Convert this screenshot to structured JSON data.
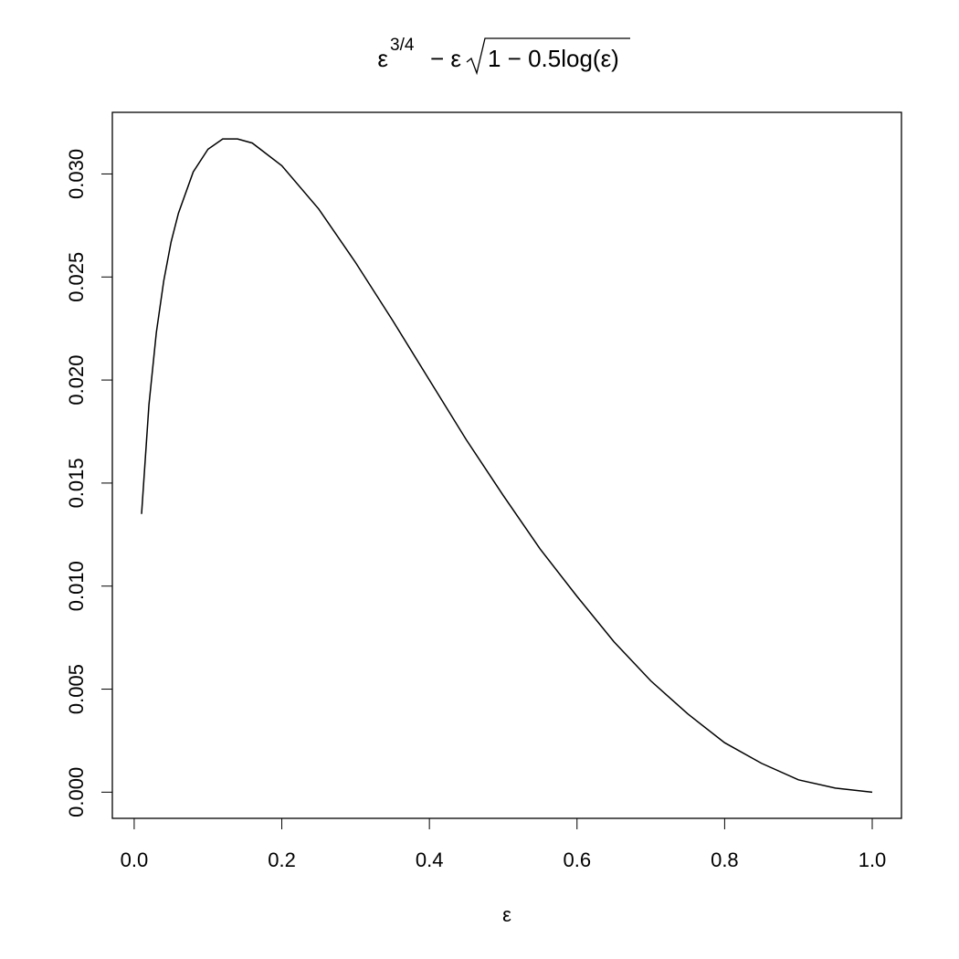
{
  "chart_data": {
    "type": "line",
    "title": {
      "base": "ε",
      "exponent": "3/4",
      "middle": "− ε",
      "radicand": "1 − 0.5log(ε)"
    },
    "x_label": "ε",
    "x": [
      0.01,
      0.02,
      0.03,
      0.04,
      0.05,
      0.06,
      0.08,
      0.1,
      0.12,
      0.14,
      0.16,
      0.2,
      0.25,
      0.3,
      0.35,
      0.4,
      0.45,
      0.5,
      0.55,
      0.6,
      0.65,
      0.7,
      0.75,
      0.8,
      0.85,
      0.9,
      0.95,
      1.0
    ],
    "series": [
      {
        "color": "#000000",
        "values": [
          0.0135,
          0.0188,
          0.0223,
          0.0248,
          0.0267,
          0.0281,
          0.0301,
          0.0312,
          0.0317,
          0.0317,
          0.0315,
          0.0304,
          0.0283,
          0.0257,
          0.0229,
          0.02,
          0.0171,
          0.0144,
          0.0118,
          0.0095,
          0.0073,
          0.0054,
          0.0038,
          0.0024,
          0.0014,
          0.0006,
          0.0002,
          0.0
        ]
      }
    ],
    "xlim": [
      -0.0296,
      1.0396
    ],
    "ylim": [
      -0.00127,
      0.03299
    ],
    "xticks": [
      {
        "value": 0,
        "label": "0.0"
      },
      0.2,
      0.4,
      0.6,
      0.8,
      {
        "value": 1,
        "label": "1.0"
      }
    ],
    "yticks": [
      {
        "value": 0,
        "label": "0.000"
      },
      {
        "value": 0.005,
        "label": "0.005"
      },
      {
        "value": 0.01,
        "label": "0.010"
      },
      {
        "value": 0.015,
        "label": "0.015"
      },
      {
        "value": 0.02,
        "label": "0.020"
      },
      {
        "value": 0.025,
        "label": "0.025"
      },
      {
        "value": 0.03,
        "label": "0.030"
      }
    ],
    "grid": false
  }
}
